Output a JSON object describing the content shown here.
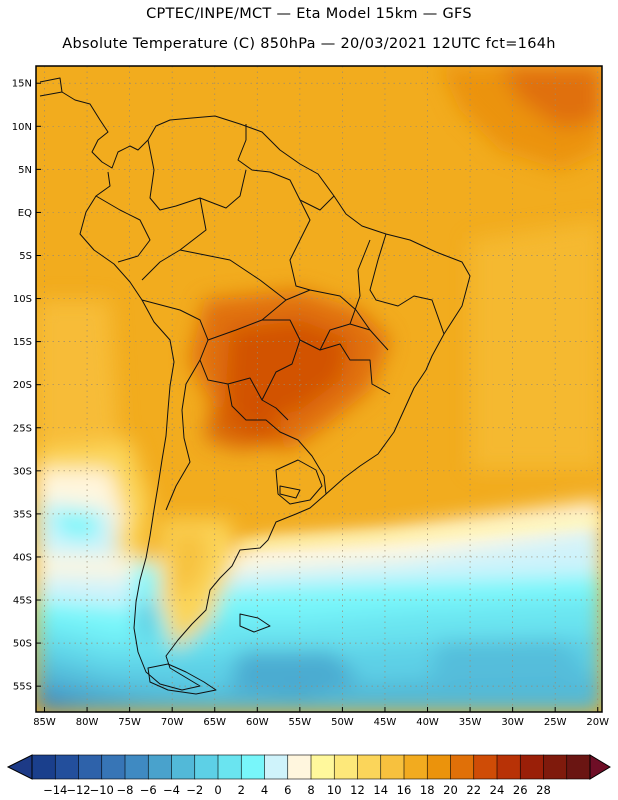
{
  "header": {
    "line1": "CPTEC/INPE/MCT —  Eta Model 15km — GFS",
    "line2": "Absolute Temperature (C) 850hPa — 20/03/2021 12UTC fct=164h"
  },
  "axes": {
    "lat_labels": [
      "15N",
      "10N",
      "5N",
      "EQ",
      "5S",
      "10S",
      "15S",
      "20S",
      "25S",
      "30S",
      "35S",
      "40S",
      "45S",
      "50S",
      "55S"
    ],
    "lat_values": [
      15,
      10,
      5,
      0,
      -5,
      -10,
      -15,
      -20,
      -25,
      -30,
      -35,
      -40,
      -45,
      -50,
      -55
    ],
    "lon_labels": [
      "85W",
      "80W",
      "75W",
      "70W",
      "65W",
      "60W",
      "55W",
      "50W",
      "45W",
      "40W",
      "35W",
      "30W",
      "25W",
      "20W"
    ],
    "lon_values": [
      -85,
      -80,
      -75,
      -70,
      -65,
      -60,
      -55,
      -50,
      -45,
      -40,
      -35,
      -30,
      -25,
      -20
    ],
    "lat_range": [
      -58,
      17
    ],
    "lon_range": [
      -86,
      -19.5
    ]
  },
  "colorbar": {
    "labels": [
      "-14",
      "-12",
      "-10",
      "-8",
      "-6",
      "-4",
      "-2",
      "0",
      "2",
      "4",
      "6",
      "8",
      "10",
      "12",
      "14",
      "16",
      "18",
      "20",
      "22",
      "24",
      "26",
      "28"
    ],
    "colors": [
      "#1a3f8c",
      "#234f9c",
      "#2e62aa",
      "#3775b6",
      "#3f8ac2",
      "#49a2cc",
      "#52b9d8",
      "#5dd0e6",
      "#6ae4f0",
      "#78f6fa",
      "#cff3fb",
      "#fff6de",
      "#fff89c",
      "#fde87a",
      "#fbd55a",
      "#f7c13e",
      "#f2ab1f",
      "#eb930c",
      "#e07008",
      "#cf4c06",
      "#b83206",
      "#9a1f08",
      "#7f1a0c",
      "#6a1512"
    ],
    "low_end_color": "#1d3a86",
    "high_end_color": "#6e0e26"
  }
}
